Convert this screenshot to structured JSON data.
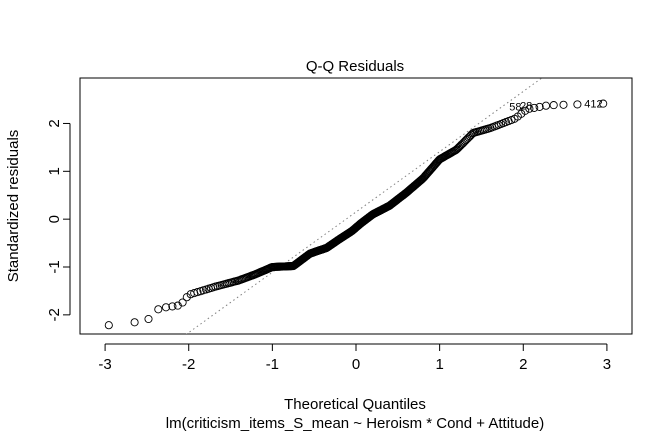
{
  "chart_data": {
    "type": "scatter",
    "title": "Q-Q Residuals",
    "xlabel": "Theoretical Quantiles",
    "ylabel": "Standardized residuals",
    "subtitle": "lm(criticism_items_S_mean ~ Heroism * Cond + Attitude)",
    "xlim": [
      -3.3,
      3.3
    ],
    "ylim": [
      -2.4,
      2.95
    ],
    "xticks": [
      -3,
      -2,
      -1,
      0,
      1,
      2,
      3
    ],
    "yticks": [
      -2,
      -1,
      0,
      1,
      2
    ],
    "x_tick_labels": [
      "-3",
      "-2",
      "-1",
      "0",
      "1",
      "2",
      "3"
    ],
    "y_tick_labels": [
      "-2",
      "-1",
      "0",
      "1",
      "2"
    ],
    "reference_line": {
      "style": "dotted",
      "slope": 1.26,
      "intercept": 0.15
    },
    "n": 400,
    "sample_curve_knots": [
      [
        -3.02,
        -2.23
      ],
      [
        -2.67,
        -2.16
      ],
      [
        -2.5,
        -2.12
      ],
      [
        -2.35,
        -1.86
      ],
      [
        -2.1,
        -1.8
      ],
      [
        -2.0,
        -1.58
      ],
      [
        -1.7,
        -1.42
      ],
      [
        -1.4,
        -1.28
      ],
      [
        -1.2,
        -1.15
      ],
      [
        -1.0,
        -1.0
      ],
      [
        -0.75,
        -0.98
      ],
      [
        -0.55,
        -0.72
      ],
      [
        -0.35,
        -0.6
      ],
      [
        -0.2,
        -0.42
      ],
      [
        -0.05,
        -0.25
      ],
      [
        0.05,
        -0.1
      ],
      [
        0.2,
        0.1
      ],
      [
        0.4,
        0.28
      ],
      [
        0.6,
        0.55
      ],
      [
        0.8,
        0.85
      ],
      [
        1.0,
        1.25
      ],
      [
        1.2,
        1.45
      ],
      [
        1.4,
        1.8
      ],
      [
        1.6,
        1.9
      ],
      [
        1.9,
        2.1
      ],
      [
        2.05,
        2.3
      ],
      [
        2.3,
        2.38
      ],
      [
        2.7,
        2.4
      ],
      [
        3.02,
        2.42
      ]
    ],
    "point_labels": [
      {
        "text": "412",
        "x": 3.02,
        "y": 2.42
      },
      {
        "text": "58",
        "x": 2.05,
        "y": 2.35
      },
      {
        "text": "28",
        "x": 2.18,
        "y": 2.38
      }
    ],
    "colors": {
      "points": "#000000",
      "reference_line": "#808080"
    },
    "grid": false
  }
}
